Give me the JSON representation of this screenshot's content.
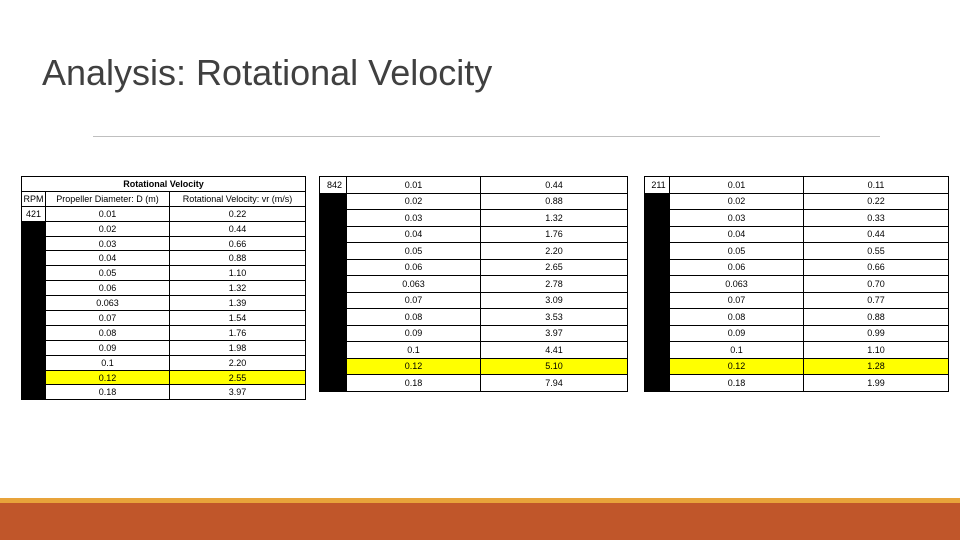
{
  "slide": {
    "title": "Analysis: Rotational Velocity"
  },
  "table1": {
    "title": "Rotational Velocity",
    "headers": [
      "RPM",
      "Propeller Diameter: D (m)",
      "Rotational Velocity: vr (m/s)"
    ],
    "rpm": "421",
    "rows": [
      {
        "d": "0.01",
        "v": "0.22"
      },
      {
        "d": "0.02",
        "v": "0.44"
      },
      {
        "d": "0.03",
        "v": "0.66"
      },
      {
        "d": "0.04",
        "v": "0.88"
      },
      {
        "d": "0.05",
        "v": "1.10"
      },
      {
        "d": "0.06",
        "v": "1.32"
      },
      {
        "d": "0.063",
        "v": "1.39"
      },
      {
        "d": "0.07",
        "v": "1.54"
      },
      {
        "d": "0.08",
        "v": "1.76"
      },
      {
        "d": "0.09",
        "v": "1.98"
      },
      {
        "d": "0.1",
        "v": "2.20"
      },
      {
        "d": "0.12",
        "v": "2.55"
      },
      {
        "d": "0.18",
        "v": "3.97"
      }
    ]
  },
  "table2": {
    "rpm": "842",
    "rows": [
      {
        "d": "0.01",
        "v": "0.44"
      },
      {
        "d": "0.02",
        "v": "0.88"
      },
      {
        "d": "0.03",
        "v": "1.32"
      },
      {
        "d": "0.04",
        "v": "1.76"
      },
      {
        "d": "0.05",
        "v": "2.20"
      },
      {
        "d": "0.06",
        "v": "2.65"
      },
      {
        "d": "0.063",
        "v": "2.78"
      },
      {
        "d": "0.07",
        "v": "3.09"
      },
      {
        "d": "0.08",
        "v": "3.53"
      },
      {
        "d": "0.09",
        "v": "3.97"
      },
      {
        "d": "0.1",
        "v": "4.41"
      },
      {
        "d": "0.12",
        "v": "5.10"
      },
      {
        "d": "0.18",
        "v": "7.94"
      }
    ]
  },
  "table3": {
    "rpm": "211",
    "rows": [
      {
        "d": "0.01",
        "v": "0.11"
      },
      {
        "d": "0.02",
        "v": "0.22"
      },
      {
        "d": "0.03",
        "v": "0.33"
      },
      {
        "d": "0.04",
        "v": "0.44"
      },
      {
        "d": "0.05",
        "v": "0.55"
      },
      {
        "d": "0.06",
        "v": "0.66"
      },
      {
        "d": "0.063",
        "v": "0.70"
      },
      {
        "d": "0.07",
        "v": "0.77"
      },
      {
        "d": "0.08",
        "v": "0.88"
      },
      {
        "d": "0.09",
        "v": "0.99"
      },
      {
        "d": "0.1",
        "v": "1.10"
      },
      {
        "d": "0.12",
        "v": "1.28"
      },
      {
        "d": "0.18",
        "v": "1.99"
      }
    ]
  },
  "colors": {
    "highlight": "#ffff00",
    "accent_bar": "#c0562a",
    "accent_stripe": "#e8a33a",
    "title_text": "#404040"
  }
}
